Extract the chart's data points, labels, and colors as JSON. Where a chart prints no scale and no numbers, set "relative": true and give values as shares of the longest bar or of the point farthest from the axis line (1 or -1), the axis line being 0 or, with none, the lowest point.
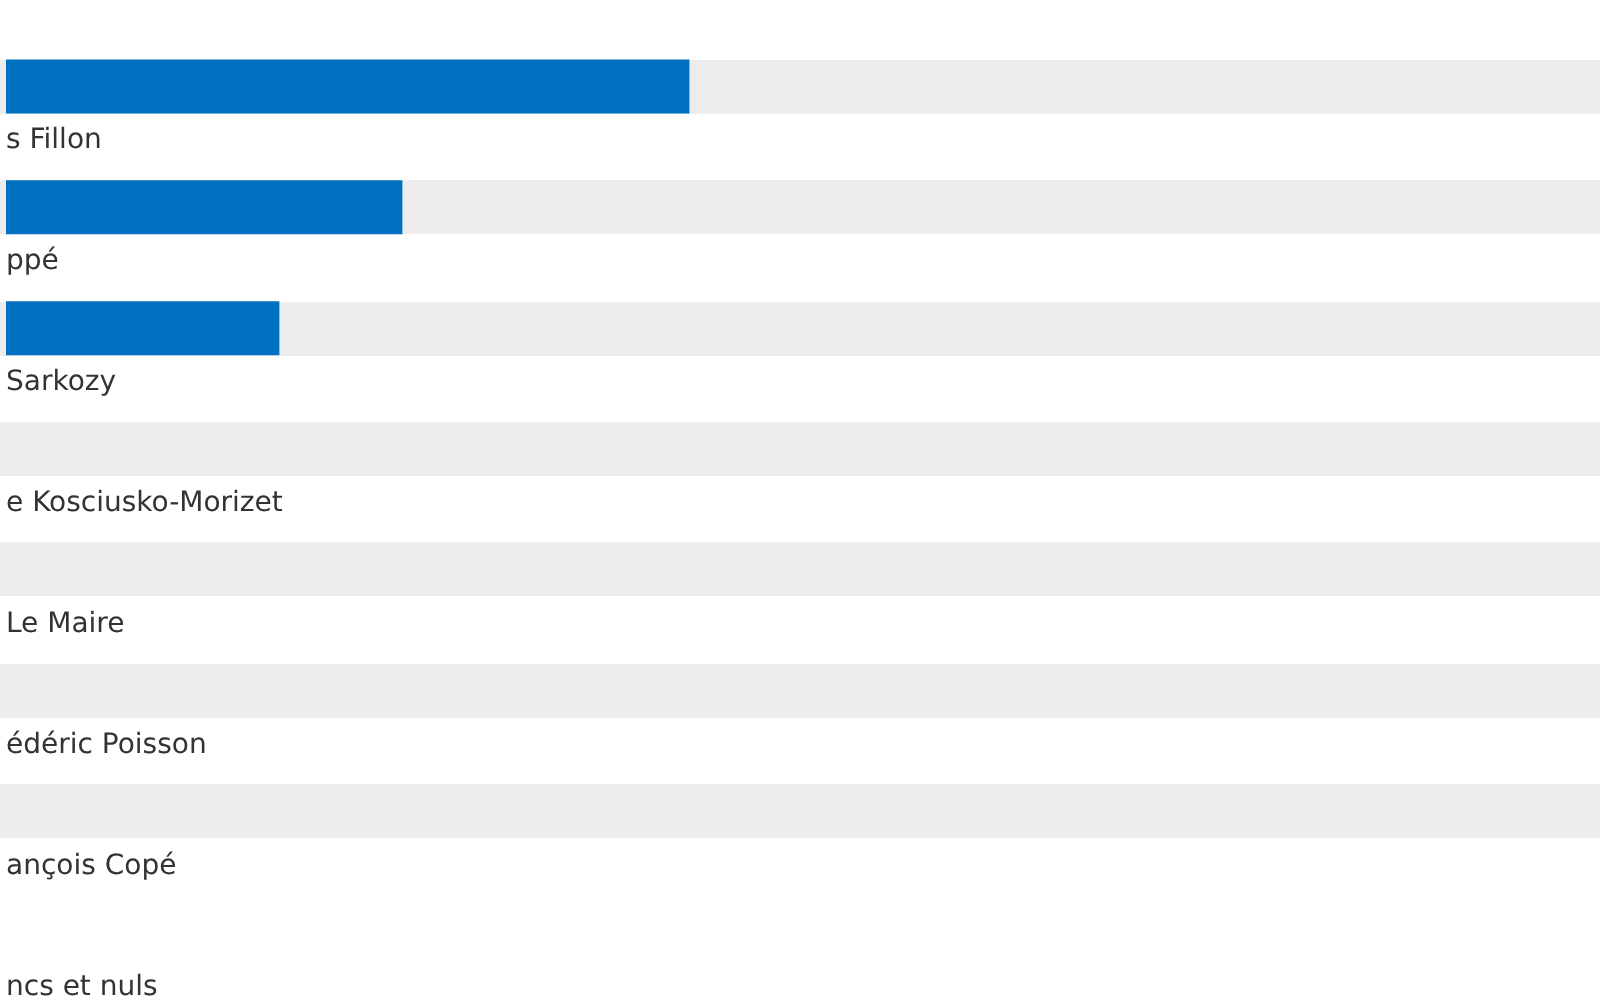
{
  "chart_data": {
    "type": "bar",
    "orientation": "horizontal",
    "relative": true,
    "categories": [
      "s Fillon",
      "ppé",
      "Sarkozy",
      "e Kosciusko-Morizet",
      "Le Maire",
      "édéric Poisson",
      "ançois Copé",
      "ncs et nuls"
    ],
    "values": [
      1,
      0.58,
      0.4,
      0,
      0,
      0,
      0,
      null
    ],
    "color": "#0070c0",
    "grid": false
  }
}
